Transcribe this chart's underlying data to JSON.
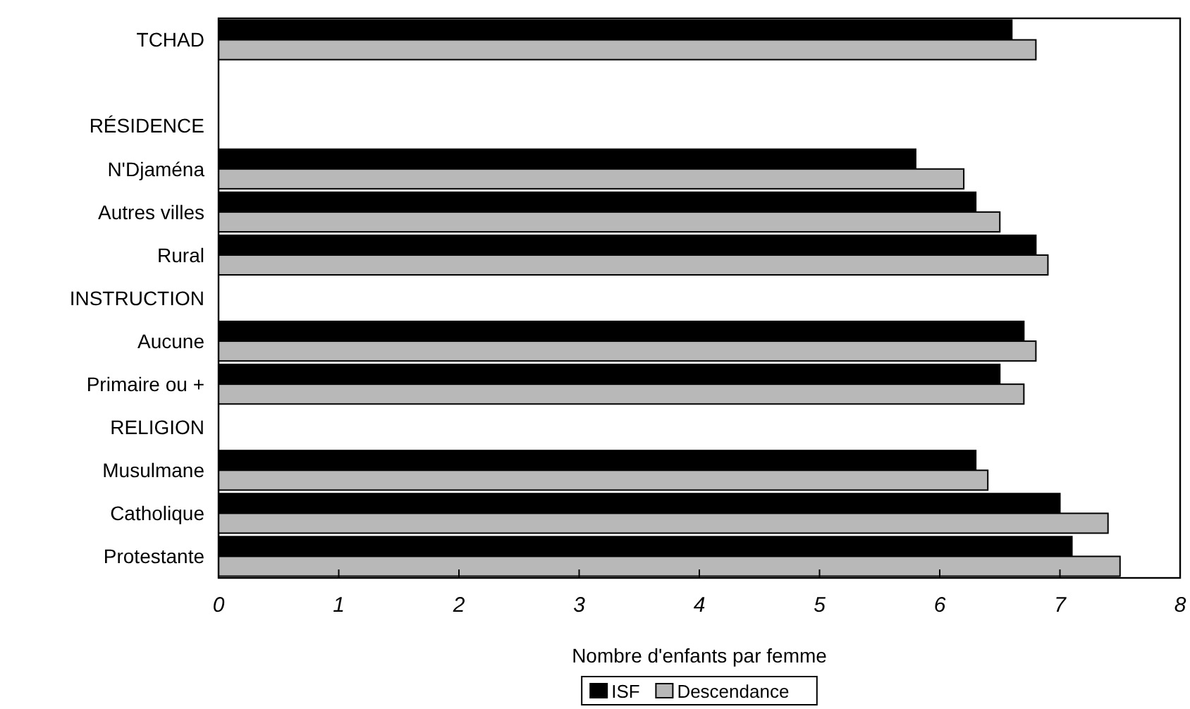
{
  "chart_data": {
    "type": "bar",
    "orientation": "horizontal",
    "xlabel": "Nombre d'enfants par femme",
    "categories": [
      "TCHAD",
      null,
      "RÉSIDENCE",
      "N'Djaména",
      "Autres villes",
      "Rural",
      "INSTRUCTION",
      "Aucune",
      "Primaire ou +",
      "RELIGION",
      "Musulmane",
      "Catholique",
      "Protestante"
    ],
    "series": [
      {
        "name": "ISF",
        "color": "#000000",
        "values": [
          6.6,
          null,
          null,
          5.8,
          6.3,
          6.8,
          null,
          6.7,
          6.5,
          null,
          6.3,
          7.0,
          7.1
        ]
      },
      {
        "name": "Descendance",
        "color": "#b8b8b8",
        "values": [
          6.8,
          null,
          null,
          6.2,
          6.5,
          6.9,
          null,
          6.8,
          6.7,
          null,
          6.4,
          7.4,
          7.5
        ]
      }
    ],
    "xlim": [
      0,
      8
    ],
    "xticks": [
      0,
      1,
      2,
      3,
      4,
      5,
      6,
      7,
      8
    ],
    "legend": "bottom",
    "grid": false
  }
}
